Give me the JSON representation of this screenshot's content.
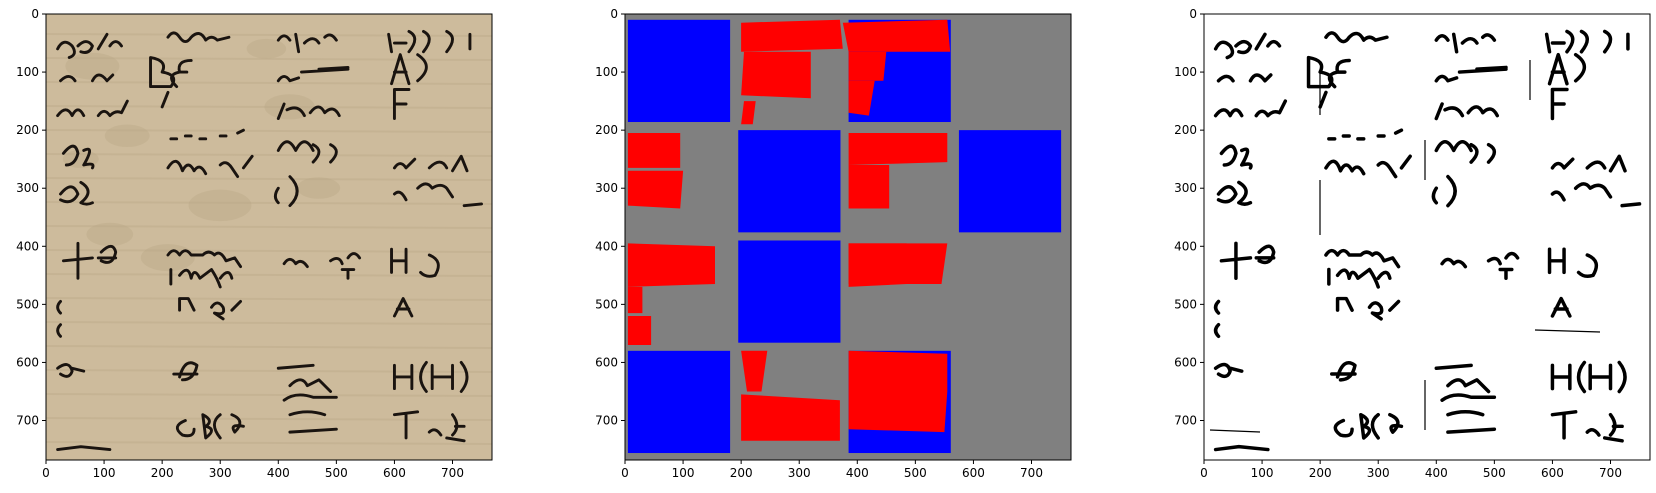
{
  "colors": {
    "figure_background": "#ffffff",
    "parchment": "#cdbb9c",
    "parchment_dark": "#b8a585",
    "ink": "#1a1410",
    "mask_background": "#808080",
    "mask_blue": "#0000ff",
    "mask_red": "#ff0000",
    "binary_background": "#ffffff",
    "binary_ink": "#000000"
  },
  "chart_data": [
    {
      "type": "image",
      "panel": "original-manuscript",
      "title": "",
      "xlabel": "",
      "ylabel": "",
      "xlim": [
        0,
        768
      ],
      "ylim": [
        768,
        0
      ],
      "xticks": [
        0,
        100,
        200,
        300,
        400,
        500,
        600,
        700
      ],
      "yticks": [
        0,
        100,
        200,
        300,
        400,
        500,
        600,
        700
      ],
      "grid": false,
      "content": "color scan of a handwritten manuscript page, 4x4 grid of fragments"
    },
    {
      "type": "image",
      "panel": "segmentation-mask",
      "title": "",
      "xlabel": "",
      "ylabel": "",
      "xlim": [
        0,
        768
      ],
      "ylim": [
        768,
        0
      ],
      "xticks": [
        0,
        100,
        200,
        300,
        400,
        500,
        600,
        700
      ],
      "yticks": [
        0,
        100,
        200,
        300,
        400,
        500,
        600,
        700
      ],
      "grid": false,
      "blue_cells": [
        [
          0,
          0
        ],
        [
          0,
          2
        ],
        [
          1,
          1
        ],
        [
          1,
          3
        ],
        [
          2,
          1
        ],
        [
          3,
          0
        ],
        [
          3,
          2
        ]
      ],
      "red_polygons": [
        [
          [
            200,
            15
          ],
          [
            370,
            10
          ],
          [
            375,
            60
          ],
          [
            200,
            65
          ]
        ],
        [
          [
            205,
            65
          ],
          [
            320,
            65
          ],
          [
            320,
            145
          ],
          [
            200,
            140
          ]
        ],
        [
          [
            205,
            150
          ],
          [
            225,
            150
          ],
          [
            220,
            190
          ],
          [
            200,
            190
          ]
        ],
        [
          [
            375,
            15
          ],
          [
            555,
            10
          ],
          [
            560,
            65
          ],
          [
            385,
            65
          ]
        ],
        [
          [
            385,
            65
          ],
          [
            450,
            65
          ],
          [
            445,
            115
          ],
          [
            385,
            115
          ]
        ],
        [
          [
            385,
            115
          ],
          [
            430,
            115
          ],
          [
            420,
            175
          ],
          [
            385,
            170
          ]
        ],
        [
          [
            5,
            205
          ],
          [
            95,
            205
          ],
          [
            95,
            265
          ],
          [
            5,
            265
          ]
        ],
        [
          [
            5,
            270
          ],
          [
            100,
            270
          ],
          [
            95,
            335
          ],
          [
            5,
            330
          ]
        ],
        [
          [
            385,
            205
          ],
          [
            555,
            205
          ],
          [
            555,
            255
          ],
          [
            385,
            260
          ]
        ],
        [
          [
            385,
            260
          ],
          [
            455,
            260
          ],
          [
            455,
            335
          ],
          [
            385,
            335
          ]
        ],
        [
          [
            5,
            395
          ],
          [
            155,
            400
          ],
          [
            155,
            465
          ],
          [
            5,
            470
          ]
        ],
        [
          [
            5,
            470
          ],
          [
            30,
            470
          ],
          [
            30,
            515
          ],
          [
            5,
            515
          ]
        ],
        [
          [
            5,
            520
          ],
          [
            45,
            520
          ],
          [
            45,
            570
          ],
          [
            5,
            570
          ]
        ],
        [
          [
            385,
            395
          ],
          [
            555,
            395
          ],
          [
            545,
            465
          ],
          [
            385,
            465
          ]
        ],
        [
          [
            385,
            395
          ],
          [
            485,
            395
          ],
          [
            485,
            465
          ],
          [
            385,
            470
          ]
        ],
        [
          [
            200,
            580
          ],
          [
            245,
            580
          ],
          [
            235,
            650
          ],
          [
            210,
            650
          ]
        ],
        [
          [
            200,
            655
          ],
          [
            370,
            665
          ],
          [
            370,
            735
          ],
          [
            200,
            735
          ]
        ],
        [
          [
            385,
            580
          ],
          [
            555,
            585
          ],
          [
            555,
            650
          ],
          [
            385,
            650
          ]
        ],
        [
          [
            385,
            650
          ],
          [
            555,
            650
          ],
          [
            550,
            720
          ],
          [
            385,
            715
          ]
        ]
      ]
    },
    {
      "type": "image",
      "panel": "binarized-manuscript",
      "title": "",
      "xlabel": "",
      "ylabel": "",
      "xlim": [
        0,
        768
      ],
      "ylim": [
        768,
        0
      ],
      "xticks": [
        0,
        100,
        200,
        300,
        400,
        500,
        600,
        700
      ],
      "yticks": [
        0,
        100,
        200,
        300,
        400,
        500,
        600,
        700
      ],
      "grid": false,
      "content": "binarized (black on white) version of the manuscript fragments"
    }
  ]
}
